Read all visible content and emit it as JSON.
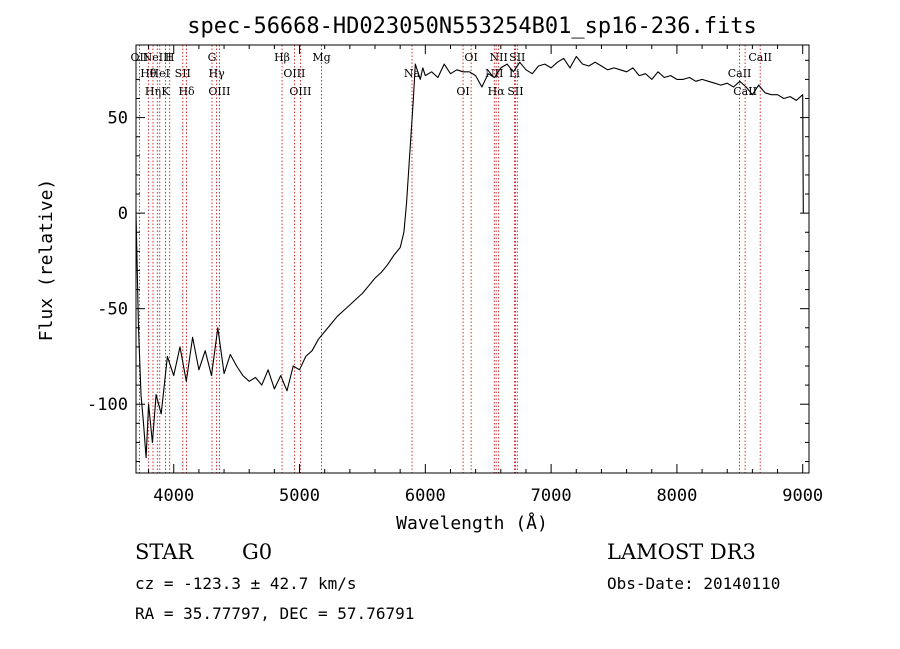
{
  "chart_data": {
    "type": "line",
    "title": "spec-56668-HD023050N553254B01_sp16-236.fits",
    "xlabel": "Wavelength (Å)",
    "ylabel": "Flux (relative)",
    "xlim": [
      3700,
      9050
    ],
    "ylim": [
      -136,
      88
    ],
    "xticks": [
      4000,
      5000,
      6000,
      7000,
      8000,
      9000
    ],
    "yticks": [
      -100,
      -50,
      0,
      50
    ],
    "grid": false,
    "series": [
      {
        "name": "flux",
        "x": [
          3700,
          3720,
          3740,
          3760,
          3780,
          3800,
          3830,
          3860,
          3900,
          3950,
          4000,
          4050,
          4100,
          4150,
          4200,
          4250,
          4300,
          4350,
          4400,
          4450,
          4500,
          4550,
          4600,
          4650,
          4700,
          4750,
          4800,
          4850,
          4900,
          4950,
          5000,
          5050,
          5100,
          5150,
          5200,
          5250,
          5300,
          5350,
          5400,
          5450,
          5500,
          5550,
          5600,
          5650,
          5700,
          5750,
          5800,
          5830,
          5850,
          5870,
          5890,
          5905,
          5920,
          5940,
          5960,
          5980,
          6000,
          6050,
          6100,
          6150,
          6200,
          6250,
          6300,
          6350,
          6400,
          6450,
          6500,
          6550,
          6600,
          6650,
          6700,
          6750,
          6800,
          6850,
          6900,
          6950,
          7000,
          7050,
          7100,
          7150,
          7200,
          7250,
          7300,
          7350,
          7400,
          7450,
          7500,
          7550,
          7600,
          7650,
          7700,
          7750,
          7800,
          7850,
          7900,
          7950,
          8000,
          8050,
          8100,
          8150,
          8200,
          8250,
          8300,
          8350,
          8400,
          8450,
          8500,
          8550,
          8600,
          8650,
          8700,
          8750,
          8800,
          8850,
          8900,
          8950,
          9000,
          9005
        ],
        "y": [
          0,
          -60,
          -95,
          -110,
          -128,
          -100,
          -120,
          -95,
          -105,
          -75,
          -85,
          -70,
          -88,
          -65,
          -82,
          -72,
          -85,
          -60,
          -84,
          -74,
          -80,
          -85,
          -88,
          -86,
          -90,
          -82,
          -92,
          -85,
          -93,
          -80,
          -82,
          -75,
          -72,
          -66,
          -62,
          -58,
          -54,
          -51,
          -48,
          -45,
          -42,
          -38,
          -34,
          -31,
          -27,
          -22,
          -18,
          -10,
          5,
          25,
          45,
          60,
          78,
          74,
          70,
          76,
          72,
          74,
          71,
          78,
          73,
          75,
          74,
          74,
          72,
          66,
          73,
          71,
          76,
          78,
          74,
          79,
          75,
          73,
          77,
          78,
          76,
          79,
          81,
          76,
          82,
          78,
          77,
          79,
          77,
          75,
          76,
          75,
          74,
          76,
          72,
          73,
          70,
          74,
          71,
          72,
          70,
          70,
          71,
          69,
          70,
          69,
          68,
          67,
          68,
          66,
          69,
          66,
          62,
          67,
          63,
          62,
          62,
          60,
          61,
          59,
          62,
          0
        ]
      }
    ],
    "lines": [
      {
        "x": 3727,
        "label": "OII"
      },
      {
        "x": 3798,
        "label": "Hθ"
      },
      {
        "x": 3835,
        "label": "Hη"
      },
      {
        "x": 3869,
        "label": "NeIII"
      },
      {
        "x": 3889,
        "label": "HeI"
      },
      {
        "x": 3934,
        "label": "K"
      },
      {
        "x": 3968,
        "label": "H"
      },
      {
        "x": 4072,
        "label": "SII"
      },
      {
        "x": 4102,
        "label": "Hδ"
      },
      {
        "x": 4304,
        "label": "G"
      },
      {
        "x": 4341,
        "label": "Hγ"
      },
      {
        "x": 4363,
        "label": "OIII"
      },
      {
        "x": 4861,
        "label": "Hβ"
      },
      {
        "x": 4959,
        "label": "OIII"
      },
      {
        "x": 5007,
        "label": "OIII"
      },
      {
        "x": 5175,
        "label": "Mg"
      },
      {
        "x": 5894,
        "label": "Na"
      },
      {
        "x": 6300,
        "label": "OI"
      },
      {
        "x": 6364,
        "label": "OI"
      },
      {
        "x": 6548,
        "label": "NII"
      },
      {
        "x": 6563,
        "label": "Hα"
      },
      {
        "x": 6583,
        "label": "NII"
      },
      {
        "x": 6708,
        "label": "Li"
      },
      {
        "x": 6717,
        "label": "SII"
      },
      {
        "x": 6731,
        "label": "SII"
      },
      {
        "x": 8498,
        "label": "CaII"
      },
      {
        "x": 8542,
        "label": "CaII"
      },
      {
        "x": 8662,
        "label": "CaII"
      }
    ]
  },
  "info": {
    "object_class": "STAR",
    "subclass": "G0",
    "survey": "LAMOST DR3",
    "cz": "cz = -123.3 ± 42.7 km/s",
    "obs_date": "Obs-Date: 20140110",
    "radec": "RA =  35.77797, DEC =  57.76791"
  },
  "colors": {
    "line": "#000000",
    "marker": "#cc0000",
    "text": "#000000"
  }
}
